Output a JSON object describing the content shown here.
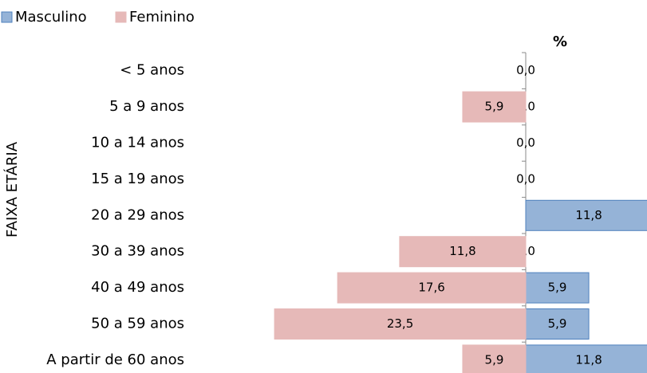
{
  "chart_data": {
    "type": "pyramid",
    "axis_label": "%",
    "y_axis_title": "FAIXA ETÁRIA",
    "categories": [
      "< 5 anos",
      "5 a 9 anos",
      "10 a 14 anos",
      "15 a 19 anos",
      "20 a 29 anos",
      "30 a 39 anos",
      "40 a 49 anos",
      "50 a 59 anos",
      "A partir de 60 anos"
    ],
    "series": [
      {
        "name": "Masculino",
        "color": "#95b3d7",
        "values": [
          0,
          0,
          0,
          0,
          11.8,
          0,
          5.9,
          5.9,
          11.8
        ],
        "value_labels": [
          "0,0",
          "0,0",
          "0,0",
          "0,0",
          "11,8",
          "0,0",
          "5,9",
          "5,9",
          "11,8"
        ]
      },
      {
        "name": "Feminino",
        "color": "#e6b9b8",
        "values": [
          0,
          5.9,
          0,
          0,
          0,
          11.8,
          17.6,
          23.5,
          5.9
        ],
        "value_labels": [
          null,
          "5,9",
          null,
          null,
          null,
          "11,8",
          "17,6",
          "23,5",
          "5,9"
        ]
      }
    ]
  }
}
